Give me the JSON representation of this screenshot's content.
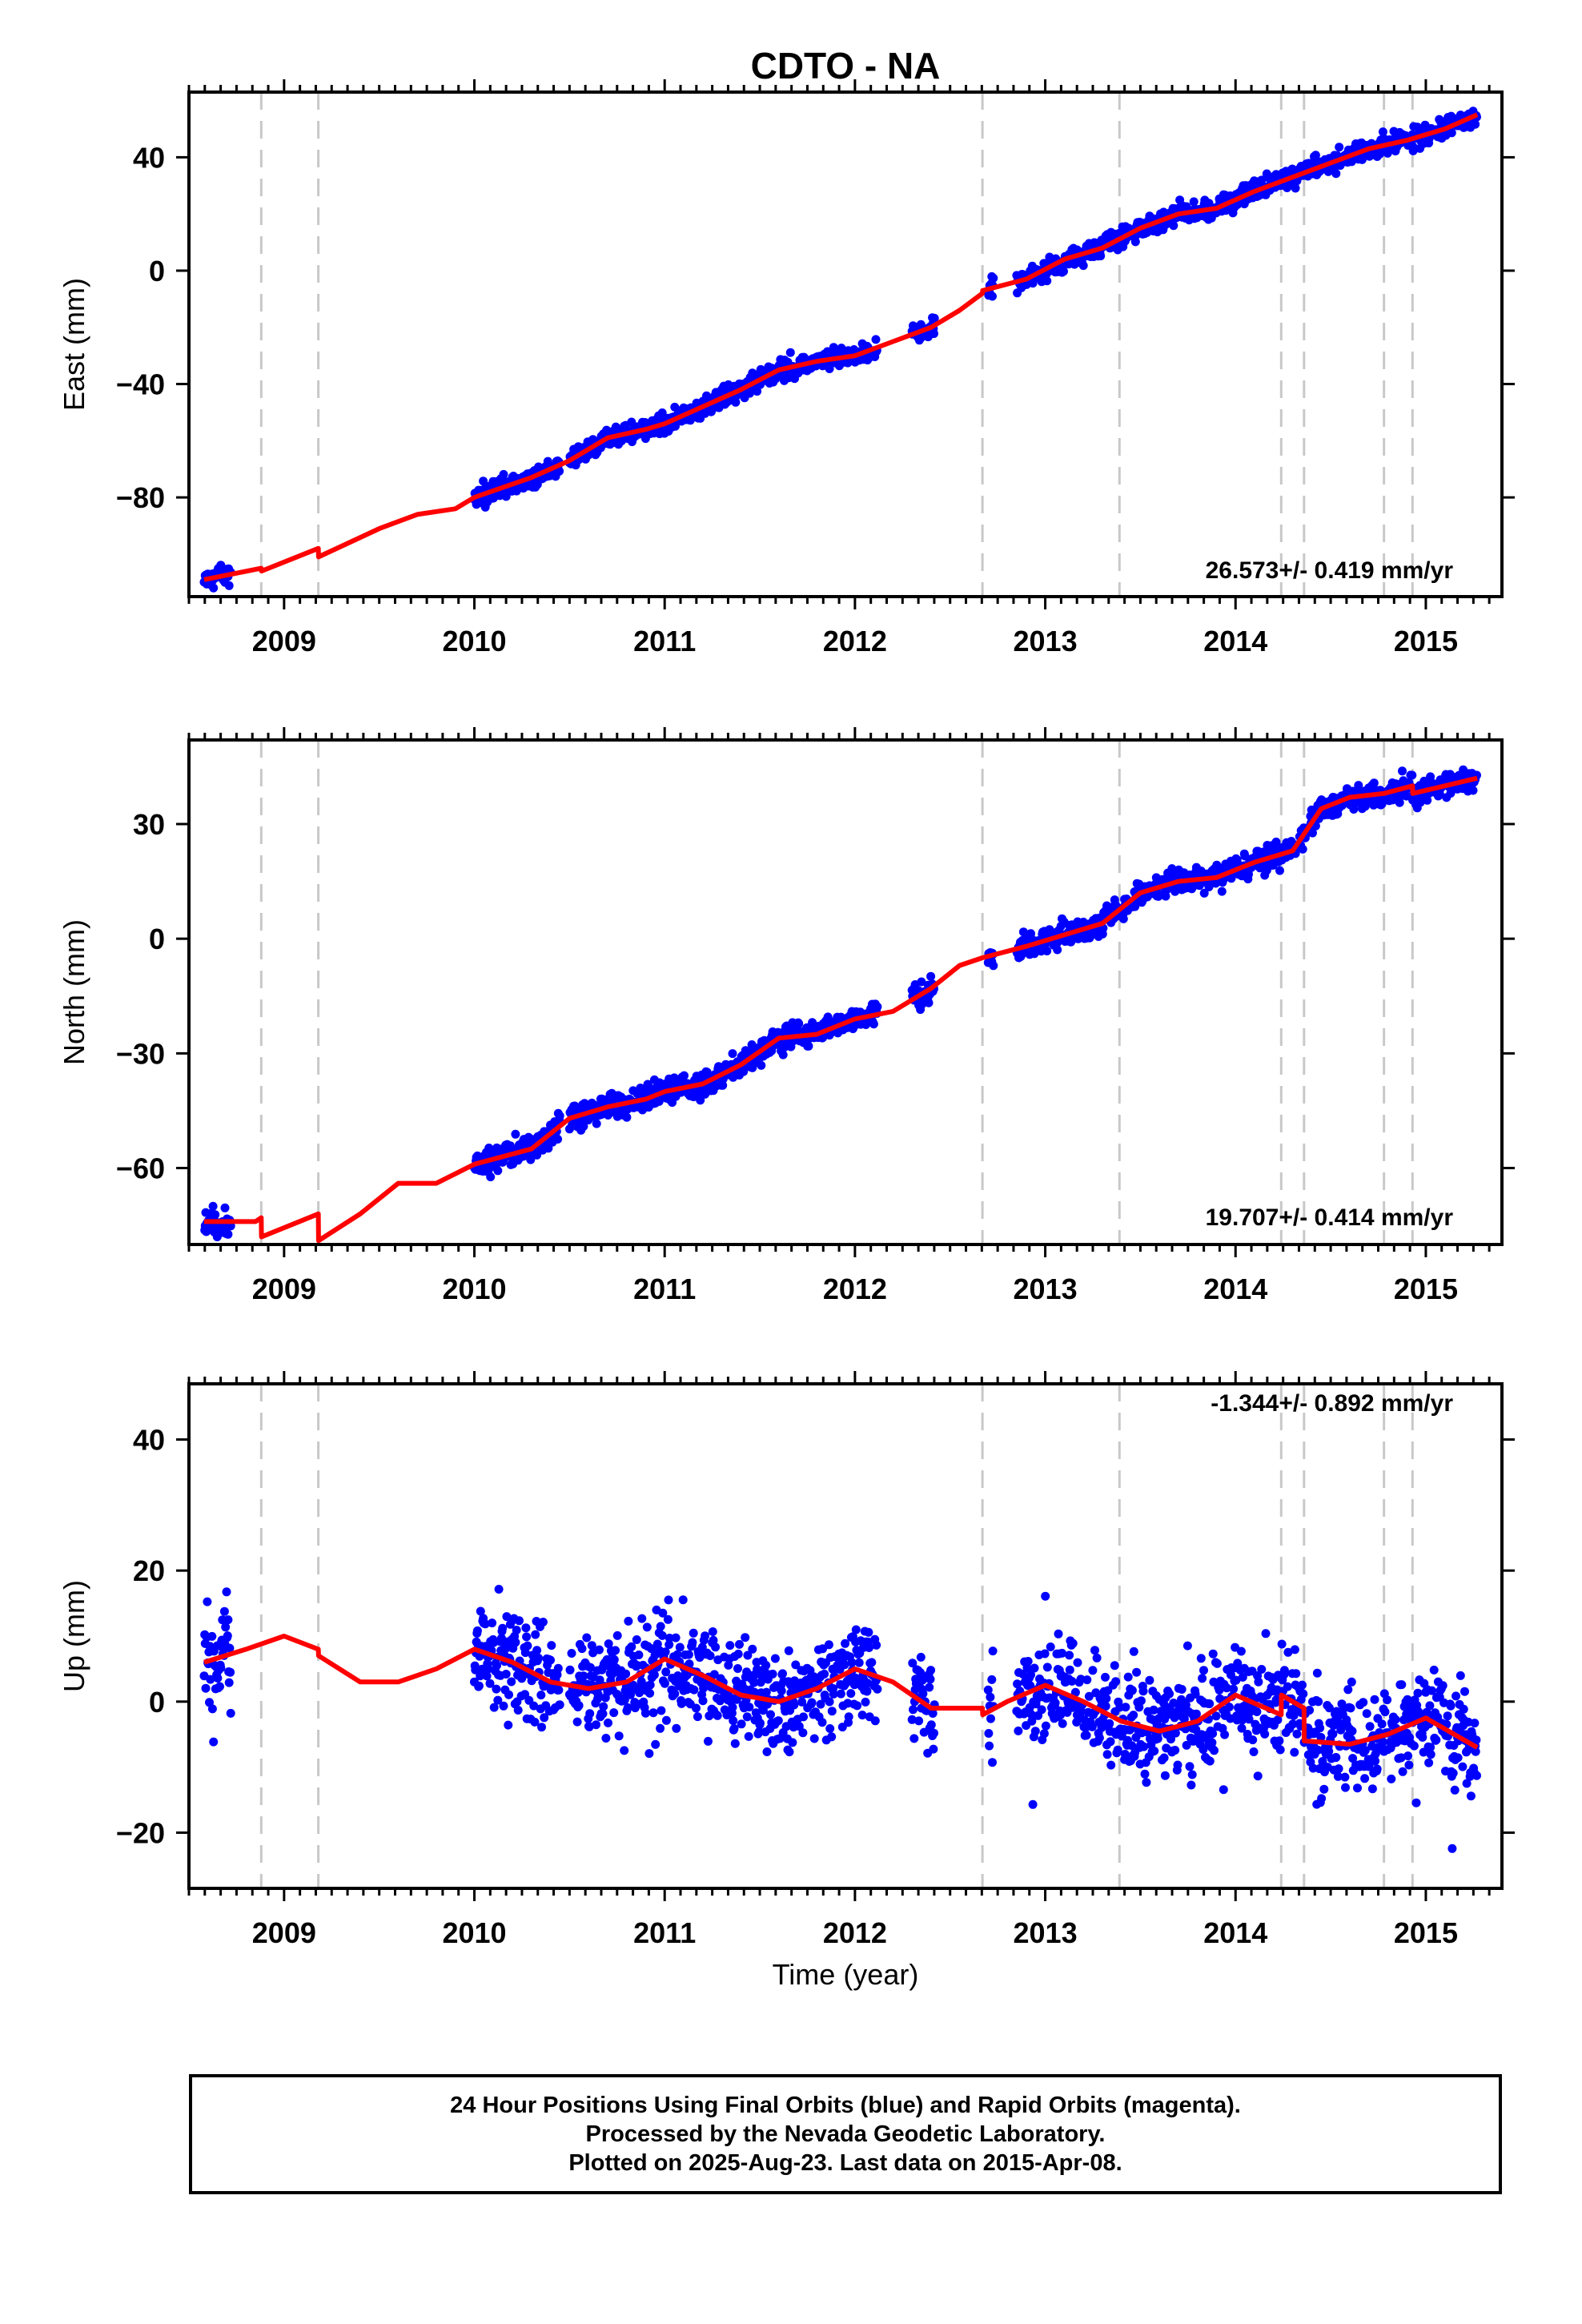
{
  "chart_data": [
    {
      "type": "scatter",
      "title": "CDTO - NA",
      "ylabel": "East (mm)",
      "xlabel": "",
      "xlim": [
        2008.5,
        2015.4
      ],
      "ylim": [
        -115,
        63
      ],
      "yticks": [
        -80,
        -40,
        0,
        40
      ],
      "xticks": [
        2009,
        2010,
        2011,
        2012,
        2013,
        2014,
        2015
      ],
      "rate_text": "26.573+/- 0.419 mm/yr",
      "rate": 26.573,
      "breaks": [
        2008.88,
        2009.18,
        2012.67,
        2013.39,
        2014.24,
        2014.36,
        2014.78,
        2014.93
      ],
      "segments": [
        [
          2008.58,
          2008.72
        ],
        [
          2010.0,
          2010.45
        ],
        [
          2010.5,
          2012.12
        ],
        [
          2012.3,
          2012.42
        ],
        [
          2012.7,
          2012.73
        ],
        [
          2012.85,
          2015.27
        ]
      ],
      "series": [
        {
          "name": "Final Orbits (blue)",
          "color": "#0000ff",
          "noise": 2.5
        },
        {
          "color": "#ff0000",
          "model": [
            [
              2008.58,
              -109
            ],
            [
              2008.88,
              -105
            ],
            [
              2008.881,
              -106
            ],
            [
              2009.18,
              -98
            ],
            [
              2009.181,
              -101
            ],
            [
              2009.5,
              -91
            ],
            [
              2009.7,
              -86
            ],
            [
              2009.9,
              -84
            ],
            [
              2010.0,
              -80
            ],
            [
              2010.3,
              -73
            ],
            [
              2010.5,
              -67
            ],
            [
              2010.7,
              -59
            ],
            [
              2010.9,
              -56
            ],
            [
              2011.0,
              -54
            ],
            [
              2011.2,
              -48
            ],
            [
              2011.4,
              -42
            ],
            [
              2011.6,
              -35
            ],
            [
              2011.8,
              -32
            ],
            [
              2012.0,
              -30
            ],
            [
              2012.2,
              -25
            ],
            [
              2012.4,
              -20
            ],
            [
              2012.55,
              -14
            ],
            [
              2012.67,
              -8
            ],
            [
              2012.671,
              -7
            ],
            [
              2012.9,
              -3
            ],
            [
              2013.1,
              4
            ],
            [
              2013.3,
              8
            ],
            [
              2013.5,
              15
            ],
            [
              2013.7,
              20
            ],
            [
              2013.9,
              22
            ],
            [
              2014.1,
              28
            ],
            [
              2014.3,
              33
            ],
            [
              2014.5,
              38
            ],
            [
              2014.7,
              43
            ],
            [
              2014.9,
              46
            ],
            [
              2015.1,
              50
            ],
            [
              2015.27,
              55
            ]
          ]
        }
      ]
    },
    {
      "type": "scatter",
      "ylabel": "North (mm)",
      "xlabel": "",
      "xlim": [
        2008.5,
        2015.4
      ],
      "ylim": [
        -80,
        52
      ],
      "yticks": [
        -60,
        -30,
        0,
        30
      ],
      "xticks": [
        2009,
        2010,
        2011,
        2012,
        2013,
        2014,
        2015
      ],
      "rate_text": "19.707+/- 0.414 mm/yr",
      "rate": 19.707,
      "breaks": [
        2008.88,
        2009.18,
        2012.67,
        2013.39,
        2014.24,
        2014.36,
        2014.78,
        2014.93
      ],
      "segments": [
        [
          2008.58,
          2008.72
        ],
        [
          2010.0,
          2010.45
        ],
        [
          2010.5,
          2012.12
        ],
        [
          2012.3,
          2012.42
        ],
        [
          2012.7,
          2012.73
        ],
        [
          2012.85,
          2015.27
        ]
      ],
      "series": [
        {
          "name": "Final Orbits (blue)",
          "color": "#0000ff",
          "noise": 2.2
        },
        {
          "color": "#ff0000",
          "model": [
            [
              2008.58,
              -74
            ],
            [
              2008.85,
              -74
            ],
            [
              2008.88,
              -73
            ],
            [
              2008.881,
              -78
            ],
            [
              2009.18,
              -72
            ],
            [
              2009.181,
              -79
            ],
            [
              2009.4,
              -72
            ],
            [
              2009.6,
              -64
            ],
            [
              2009.8,
              -64
            ],
            [
              2010.0,
              -59
            ],
            [
              2010.3,
              -55
            ],
            [
              2010.5,
              -47
            ],
            [
              2010.7,
              -44
            ],
            [
              2010.9,
              -42
            ],
            [
              2011.0,
              -40
            ],
            [
              2011.2,
              -38
            ],
            [
              2011.4,
              -33
            ],
            [
              2011.6,
              -26
            ],
            [
              2011.8,
              -25
            ],
            [
              2012.0,
              -21
            ],
            [
              2012.2,
              -19
            ],
            [
              2012.4,
              -13
            ],
            [
              2012.55,
              -7
            ],
            [
              2012.67,
              -5
            ],
            [
              2012.9,
              -2
            ],
            [
              2013.1,
              1
            ],
            [
              2013.3,
              4
            ],
            [
              2013.5,
              12
            ],
            [
              2013.7,
              15
            ],
            [
              2013.9,
              16
            ],
            [
              2014.1,
              20
            ],
            [
              2014.3,
              23
            ],
            [
              2014.45,
              34
            ],
            [
              2014.6,
              37
            ],
            [
              2014.78,
              38
            ],
            [
              2014.93,
              40
            ],
            [
              2014.931,
              38
            ],
            [
              2015.1,
              40
            ],
            [
              2015.27,
              42
            ]
          ]
        }
      ]
    },
    {
      "type": "scatter",
      "ylabel": "Up (mm)",
      "xlabel": "Time (year)",
      "xlim": [
        2008.5,
        2015.4
      ],
      "ylim": [
        -28.5,
        48.5
      ],
      "yticks": [
        -20,
        0,
        20,
        40
      ],
      "xticks": [
        2009,
        2010,
        2011,
        2012,
        2013,
        2014,
        2015
      ],
      "rate_text": "-1.344+/- 0.892 mm/yr",
      "rate": -1.344,
      "breaks": [
        2008.88,
        2009.18,
        2012.67,
        2013.39,
        2014.24,
        2014.36,
        2014.78,
        2014.93
      ],
      "segments": [
        [
          2008.58,
          2008.72
        ],
        [
          2010.0,
          2010.45
        ],
        [
          2010.5,
          2012.12
        ],
        [
          2012.3,
          2012.42
        ],
        [
          2012.7,
          2012.73
        ],
        [
          2012.85,
          2015.27
        ]
      ],
      "series": [
        {
          "name": "Final Orbits (blue)",
          "color": "#0000ff",
          "noise": 5.5
        },
        {
          "color": "#ff0000",
          "model": [
            [
              2008.58,
              6
            ],
            [
              2008.8,
              8
            ],
            [
              2009.0,
              10
            ],
            [
              2009.18,
              8
            ],
            [
              2009.181,
              7
            ],
            [
              2009.4,
              3
            ],
            [
              2009.6,
              3
            ],
            [
              2009.8,
              5
            ],
            [
              2010.0,
              8
            ],
            [
              2010.2,
              6
            ],
            [
              2010.4,
              3
            ],
            [
              2010.6,
              2
            ],
            [
              2010.8,
              3
            ],
            [
              2011.0,
              6.5
            ],
            [
              2011.2,
              4
            ],
            [
              2011.4,
              1
            ],
            [
              2011.6,
              0
            ],
            [
              2011.8,
              2
            ],
            [
              2012.0,
              5
            ],
            [
              2012.2,
              3
            ],
            [
              2012.4,
              -1
            ],
            [
              2012.67,
              -1
            ],
            [
              2012.671,
              -2
            ],
            [
              2012.8,
              0
            ],
            [
              2013.0,
              2.5
            ],
            [
              2013.2,
              0
            ],
            [
              2013.4,
              -3
            ],
            [
              2013.6,
              -4.5
            ],
            [
              2013.8,
              -3
            ],
            [
              2014.0,
              1
            ],
            [
              2014.24,
              -2
            ],
            [
              2014.241,
              1
            ],
            [
              2014.36,
              -1
            ],
            [
              2014.361,
              -6
            ],
            [
              2014.6,
              -6.5
            ],
            [
              2014.8,
              -5
            ],
            [
              2015.0,
              -2.5
            ],
            [
              2015.27,
              -7
            ]
          ]
        }
      ]
    }
  ],
  "footer": {
    "line1": "24 Hour Positions Using Final Orbits (blue) and Rapid Orbits (magenta).",
    "line2": "Processed by the Nevada Geodetic Laboratory.",
    "line3": "Plotted on 2025-Aug-23. Last data on 2015-Apr-08."
  }
}
